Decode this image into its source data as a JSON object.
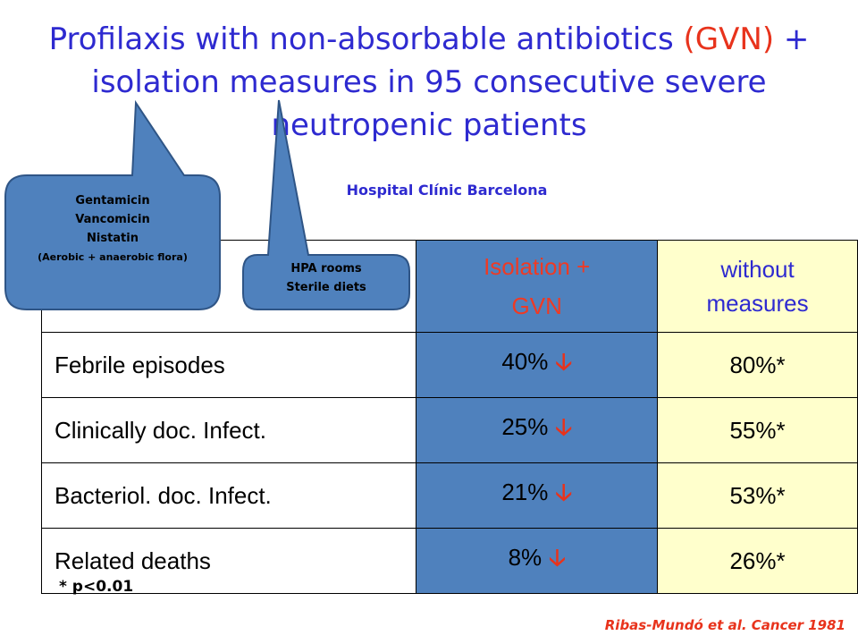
{
  "title": {
    "part1": "Profilaxis with non-absorbable antibiotics ",
    "accent": "(GVN)",
    "part2": " + isolation measures in 95 consecutive severe neutropenic patients"
  },
  "hospital": "Hospital Clínic Barcelona",
  "callout_antibiotics": {
    "lines": [
      "Gentamicin",
      "Vancomicin",
      "Nistatin"
    ],
    "note": "(Aerobic + anaerobic flora)"
  },
  "callout_isolation": {
    "lines": [
      "HPA rooms",
      "Sterile diets"
    ]
  },
  "table": {
    "header_iso": [
      "Isolation +",
      "GVN"
    ],
    "header_without": [
      "without",
      "measures"
    ],
    "rows": [
      {
        "label": "Febrile episodes",
        "iso": "40%",
        "without": "80%*"
      },
      {
        "label": "Clinically doc. Infect.",
        "iso": "25%",
        "without": "55%*"
      },
      {
        "label": "Bacteriol. doc. Infect.",
        "iso": "21%",
        "without": "53%*"
      },
      {
        "label": "Related deaths",
        "iso": "8%",
        "without": "26%*"
      }
    ],
    "decrease_icon": "down-arrow-icon"
  },
  "footnote": "* p<0.01",
  "citation": "Ribas-Mundó et al. Cancer 1981",
  "colors": {
    "title": "#2e2ad0",
    "accent": "#e8331c",
    "iso_column": "#4f81bd",
    "without_column": "#ffffcc",
    "callout_fill": "#4f81bd"
  }
}
